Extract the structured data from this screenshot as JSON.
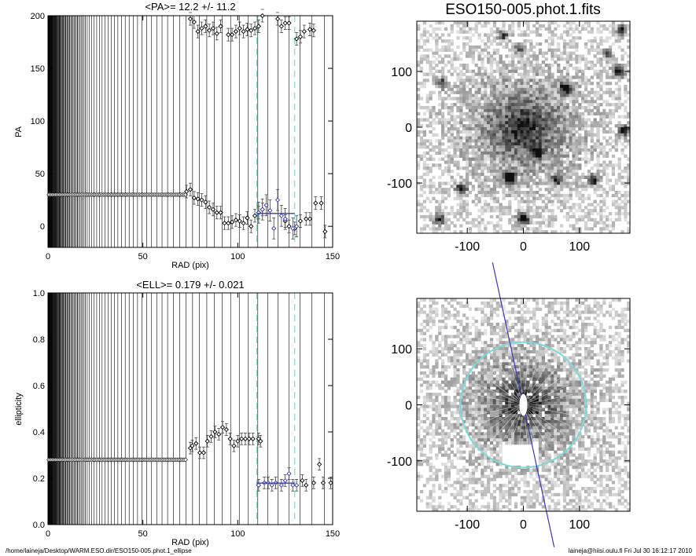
{
  "chart_data": [
    {
      "type": "scatter",
      "title": "<PA>=  12.2 +/-  11.2",
      "xlabel": "RAD (pix)",
      "ylabel": "PA",
      "xlim": [
        0,
        150
      ],
      "ylim": [
        -20,
        200
      ],
      "xticks": [
        "0",
        "50",
        "100",
        "150"
      ],
      "yticks": [
        "0",
        "50",
        "100",
        "150",
        "200"
      ],
      "xtick_values": [
        0,
        50,
        100,
        150
      ],
      "ytick_values": [
        0,
        50,
        100,
        150,
        200
      ],
      "fit_range_markers": [
        110,
        130
      ],
      "mean_line": {
        "x": [
          110,
          130
        ],
        "y": 12.2
      },
      "inner_points": {
        "x_start": 0.5,
        "x_end": 73,
        "y": 30
      },
      "series": [
        {
          "values": [
            [
              73,
              33
            ],
            [
              75,
              35
            ],
            [
              77,
              27
            ],
            [
              79,
              26
            ],
            [
              81,
              25
            ],
            [
              83,
              23
            ],
            [
              85,
              18
            ],
            [
              87,
              16
            ],
            [
              89,
              13
            ],
            [
              91,
              13
            ],
            [
              93,
              3
            ],
            [
              95,
              3
            ],
            [
              97,
              4
            ],
            [
              99,
              6
            ],
            [
              101,
              5
            ],
            [
              103,
              3
            ],
            [
              105,
              8
            ],
            [
              107,
              0
            ],
            [
              109,
              10
            ],
            [
              111,
              13
            ],
            [
              113,
              16
            ],
            [
              125,
              5
            ],
            [
              127,
              0
            ],
            [
              130,
              -2
            ],
            [
              133,
              5
            ],
            [
              136,
              7
            ],
            [
              138,
              7
            ],
            [
              141,
              22
            ],
            [
              144,
              22
            ],
            [
              146,
              -5
            ],
            [
              75,
              197
            ],
            [
              77,
              194
            ],
            [
              79,
              185
            ],
            [
              81,
              188
            ],
            [
              83,
              190
            ],
            [
              85,
              186
            ],
            [
              87,
              188
            ],
            [
              89,
              183
            ],
            [
              91,
              190
            ],
            [
              95,
              182
            ],
            [
              97,
              182
            ],
            [
              99,
              185
            ],
            [
              101,
              188
            ],
            [
              103,
              185
            ],
            [
              105,
              187
            ],
            [
              107,
              186
            ],
            [
              109,
              188
            ],
            [
              111,
              190
            ],
            [
              113,
              200
            ],
            [
              121,
              197
            ],
            [
              123,
              190
            ],
            [
              125,
              193
            ],
            [
              127,
              193
            ],
            [
              131,
              178
            ],
            [
              133,
              180
            ],
            [
              135,
              185
            ],
            [
              138,
              187
            ],
            [
              140,
              186
            ]
          ],
          "err": 6
        },
        {
          "name": "fit",
          "values": [
            [
              111,
              13
            ],
            [
              113,
              16
            ],
            [
              115,
              20
            ],
            [
              117,
              15
            ],
            [
              119,
              -2
            ],
            [
              121,
              25
            ],
            [
              123,
              10
            ],
            [
              125,
              7
            ],
            [
              129,
              -2
            ],
            [
              131,
              0
            ]
          ],
          "err": 10
        }
      ]
    },
    {
      "type": "scatter",
      "title": "<ELL>= 0.179 +/-  0.021",
      "xlabel": "RAD (pix)",
      "ylabel": "ellipticity",
      "xlim": [
        0,
        150
      ],
      "ylim": [
        0.0,
        1.0
      ],
      "xticks": [
        "0",
        "50",
        "100",
        "150"
      ],
      "yticks": [
        "0.0",
        "0.2",
        "0.4",
        "0.6",
        "0.8",
        "1.0"
      ],
      "xtick_values": [
        0,
        50,
        100,
        150
      ],
      "ytick_values": [
        0.0,
        0.2,
        0.4,
        0.6,
        0.8,
        1.0
      ],
      "fit_range_markers": [
        110,
        130
      ],
      "mean_line": {
        "x": [
          110,
          130
        ],
        "y": 0.179
      },
      "inner_points": {
        "x_start": 0.5,
        "x_end": 73,
        "y": 0.28
      },
      "series": [
        {
          "values": [
            [
              75,
              0.33
            ],
            [
              76,
              0.34
            ],
            [
              78,
              0.35
            ],
            [
              80,
              0.31
            ],
            [
              82,
              0.31
            ],
            [
              84,
              0.36
            ],
            [
              86,
              0.38
            ],
            [
              88,
              0.4
            ],
            [
              90,
              0.39
            ],
            [
              92,
              0.42
            ],
            [
              94,
              0.41
            ],
            [
              96,
              0.37
            ],
            [
              98,
              0.34
            ],
            [
              100,
              0.36
            ],
            [
              102,
              0.37
            ],
            [
              104,
              0.37
            ],
            [
              106,
              0.37
            ],
            [
              108,
              0.37
            ],
            [
              111,
              0.37
            ],
            [
              112,
              0.36
            ],
            [
              134,
              0.19
            ],
            [
              136,
              0.17
            ],
            [
              140,
              0.18
            ],
            [
              143,
              0.26
            ],
            [
              145,
              0.18
            ],
            [
              149,
              0.18
            ]
          ],
          "err": 0.025
        },
        {
          "name": "fit",
          "values": [
            [
              111,
              0.17
            ],
            [
              114,
              0.18
            ],
            [
              116,
              0.18
            ],
            [
              118,
              0.17
            ],
            [
              120,
              0.18
            ],
            [
              123,
              0.17
            ],
            [
              125,
              0.19
            ],
            [
              127,
              0.22
            ],
            [
              129,
              0.17
            ],
            [
              131,
              0.17
            ]
          ],
          "err": 0.025
        }
      ]
    },
    {
      "type": "heatmap",
      "title": "ESO150-005.phot.1.fits",
      "xticks": [
        "-100",
        "0",
        "100"
      ],
      "yticks": [
        "100",
        "0",
        "-100"
      ],
      "xtick_values": [
        -100,
        0,
        100
      ],
      "ytick_values": [
        100,
        0,
        -100
      ],
      "range": [
        -190,
        190
      ],
      "stars": [
        [
          -25,
          -90,
          1.0
        ],
        [
          0,
          -165,
          0.9
        ],
        [
          75,
          70,
          0.8
        ],
        [
          170,
          100,
          0.8
        ],
        [
          180,
          -5,
          0.7
        ],
        [
          125,
          -95,
          0.7
        ],
        [
          -110,
          -110,
          0.7
        ],
        [
          -150,
          -165,
          0.6
        ],
        [
          25,
          -45,
          0.6
        ],
        [
          60,
          -95,
          0.5
        ],
        [
          175,
          175,
          0.6
        ],
        [
          -35,
          165,
          0.5
        ],
        [
          150,
          130,
          0.4
        ],
        [
          -5,
          140,
          0.4
        ],
        [
          -145,
          80,
          0.5
        ]
      ]
    },
    {
      "type": "heatmap",
      "xticks": [
        "-100",
        "0",
        "100"
      ],
      "yticks": [
        "100",
        "0",
        "-100"
      ],
      "xtick_values": [
        -100,
        0,
        100
      ],
      "ytick_values": [
        100,
        0,
        -100
      ],
      "range": [
        -190,
        190
      ],
      "circle_radius": 112,
      "pa_line_deg": 12.2
    }
  ],
  "footer": {
    "path": "/home/laineja/Desktop/WARM.ESO.dir/ESO150-005.phot.1_ellipse",
    "stamp": "laineja@hiisi.oulu.fi  Fri Jul 30 16:12:17 2010"
  },
  "colors": {
    "fit": "#3a3ab4",
    "marker_lines": "#7fd8d8",
    "ink": "#000000"
  }
}
